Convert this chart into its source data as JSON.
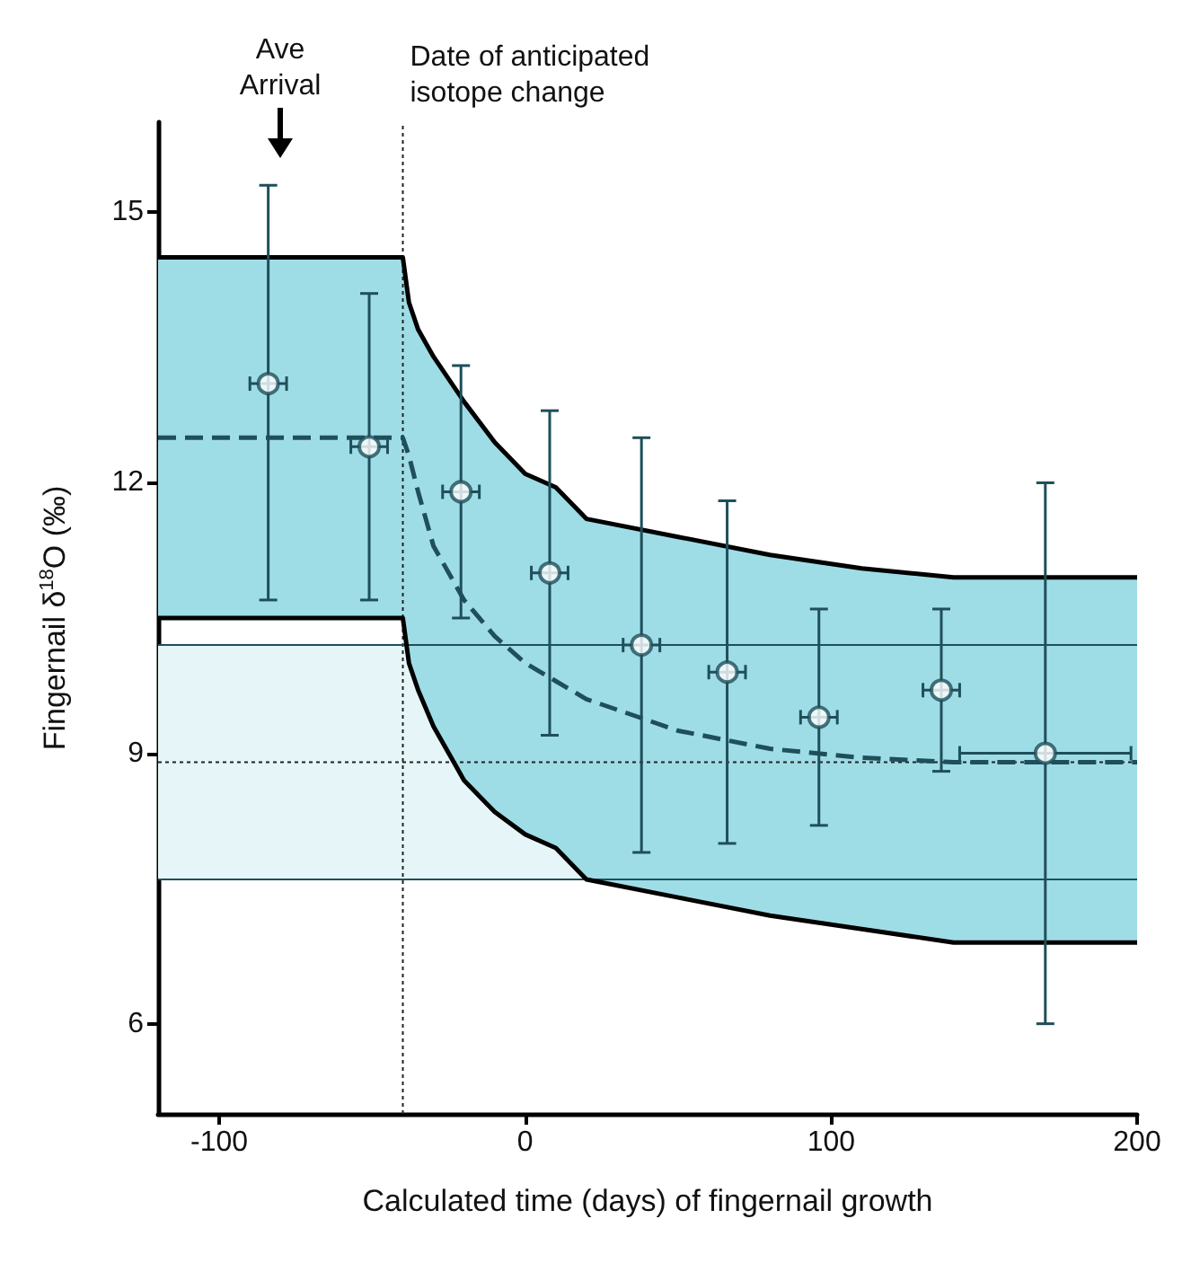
{
  "chart_data": {
    "type": "scatter",
    "xlabel": "Calculated time (days) of fingernail growth",
    "ylabel": "Fingernail δ$^{18}$O (‰)",
    "xlim": [
      -120,
      200
    ],
    "ylim": [
      5,
      16
    ],
    "xticks": [
      -100,
      0,
      100,
      200
    ],
    "yticks": [
      6,
      9,
      12,
      15
    ],
    "series": [
      {
        "type": "line",
        "color": "#1e4f5a",
        "line_style": "dashed",
        "x": [
          -120,
          -40,
          -38,
          -35,
          -30,
          -20,
          -10,
          0,
          10,
          20,
          50,
          80,
          110,
          140,
          200
        ],
        "values": [
          12.5,
          12.5,
          12.3,
          11.9,
          11.3,
          10.7,
          10.3,
          10.0,
          9.8,
          9.6,
          9.25,
          9.05,
          8.95,
          8.9,
          8.9
        ],
        "upper": [
          14.5,
          14.5,
          14.0,
          13.7,
          13.4,
          12.9,
          12.45,
          12.1,
          11.95,
          11.6,
          11.4,
          11.2,
          11.05,
          10.95,
          10.95
        ],
        "lower": [
          10.5,
          10.5,
          10.0,
          9.7,
          9.3,
          8.7,
          8.35,
          8.1,
          7.95,
          7.6,
          7.4,
          7.2,
          7.05,
          6.9,
          6.9
        ]
      },
      {
        "type": "line",
        "color": "#000000",
        "x": [
          -120,
          -40,
          -38,
          -35,
          -30,
          -20,
          -10,
          0,
          10,
          20,
          50,
          80,
          110,
          140,
          200
        ],
        "values": [
          14.5,
          14.5,
          14.0,
          13.7,
          13.4,
          12.9,
          12.45,
          12.1,
          11.95,
          11.6,
          11.4,
          11.2,
          11.05,
          10.95,
          10.95
        ]
      },
      {
        "type": "line",
        "color": "#000000",
        "x": [
          -120,
          -40,
          -38,
          -35,
          -30,
          -20,
          -10,
          0,
          10,
          20,
          50,
          80,
          110,
          140,
          200
        ],
        "values": [
          10.5,
          10.5,
          10.0,
          9.7,
          9.3,
          8.7,
          8.35,
          8.1,
          7.95,
          7.6,
          7.4,
          7.2,
          7.05,
          6.9,
          6.9
        ]
      },
      {
        "color": "#1e4f5a",
        "marker": "circle",
        "x": [
          -84,
          -51,
          -21,
          8,
          38,
          66,
          96,
          136,
          170
        ],
        "values": [
          13.1,
          12.4,
          11.9,
          11.0,
          10.2,
          9.9,
          9.4,
          9.7,
          9.0
        ],
        "errors": [
          [
            10.7,
            15.3
          ],
          [
            10.7,
            14.1
          ],
          [
            10.5,
            13.3
          ],
          [
            9.2,
            12.8
          ],
          [
            7.9,
            12.5
          ],
          [
            8.0,
            11.8
          ],
          [
            8.2,
            10.6
          ],
          [
            8.8,
            10.6
          ],
          [
            6.0,
            12.0
          ]
        ],
        "xerrors": [
          6,
          6,
          6,
          6,
          6,
          6,
          6,
          6,
          28
        ]
      }
    ],
    "bands": [
      {
        "axis": "y",
        "from": 7.6,
        "to": 10.2,
        "color": "#e6f6f8"
      }
    ],
    "ref_lines": [
      {
        "axis": "x",
        "value": -40,
        "label": "Date of anticipated isotope change",
        "line_style": "dotted"
      },
      {
        "axis": "y",
        "value": 8.9,
        "line_style": "dotted"
      },
      {
        "axis": "y",
        "value": 10.2,
        "color": "#1e4f5a",
        "line_style": "solid"
      },
      {
        "axis": "y",
        "value": 7.6,
        "color": "#1e4f5a",
        "line_style": "solid"
      }
    ],
    "annotations": [
      "Ave Arrival"
    ]
  }
}
